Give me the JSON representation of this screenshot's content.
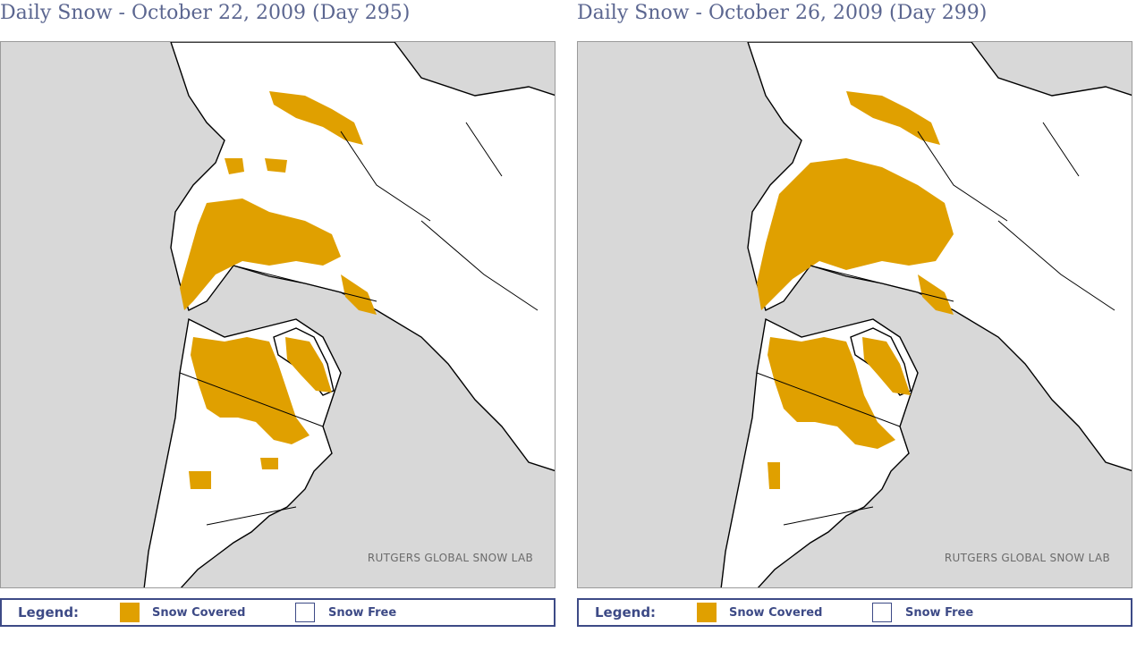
{
  "colors": {
    "snow_covered": "#e0a000",
    "snow_free": "#ffffff",
    "ocean": "#d8d8d8",
    "title": "#5b6690",
    "legend": "#3d4a86"
  },
  "panels": [
    {
      "title": "Daily Snow - October 22, 2009 (Day 295)",
      "credit": "RUTGERS GLOBAL SNOW LAB",
      "legend": {
        "title": "Legend:",
        "snow_covered": "Snow Covered",
        "snow_free": "Snow Free"
      }
    },
    {
      "title": "Daily Snow - October 26, 2009 (Day 299)",
      "credit": "RUTGERS GLOBAL SNOW LAB",
      "legend": {
        "title": "Legend:",
        "snow_covered": "Snow Covered",
        "snow_free": "Snow Free"
      }
    }
  ]
}
